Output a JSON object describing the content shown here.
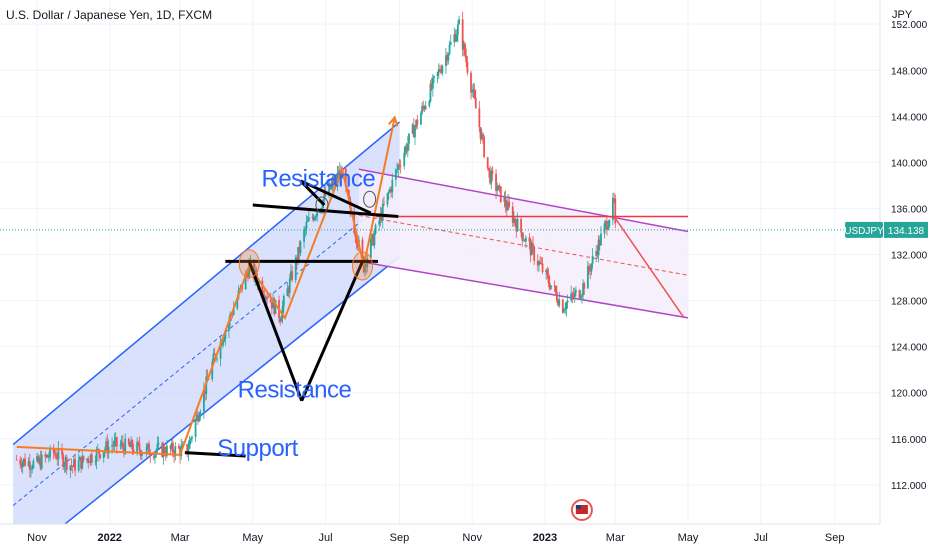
{
  "header": {
    "title": "U.S. Dollar / Japanese Yen, 1D, FXCM"
  },
  "axis": {
    "currency": "JPY"
  },
  "ticker": {
    "symbol": "USDJPY",
    "last": "134.138"
  },
  "colors": {
    "up": "#26a69a",
    "down": "#ef5350",
    "channel_fill": "#c9d4fb",
    "channel_line": "#2962ff",
    "purple": "#b045c9",
    "purple_fill": "#f4eefb",
    "orange": "#f57c26",
    "red_line": "#f23645",
    "text_blue": "#2962ff",
    "price_line": "#26a69a"
  },
  "chart_data": {
    "type": "candlestick",
    "title": "U.S. Dollar / Japanese Yen, 1D, FXCM",
    "y_unit": "JPY",
    "ylim": [
      108.6,
      154.1
    ],
    "y_ticks": [
      "112.000",
      "116.000",
      "120.000",
      "124.000",
      "128.000",
      "132.000",
      "136.000",
      "140.000",
      "144.000",
      "148.000",
      "152.000"
    ],
    "x_ticks": [
      "Nov",
      "2022",
      "Mar",
      "May",
      "Jul",
      "Sep",
      "Nov",
      "2023",
      "Mar",
      "May",
      "Jul",
      "Sep"
    ],
    "last_price": 134.138,
    "price_path": [
      [
        "2021-10-15",
        114.2
      ],
      [
        "2021-11-01",
        113.8
      ],
      [
        "2021-11-15",
        114.8
      ],
      [
        "2021-12-01",
        113.6
      ],
      [
        "2022-01-03",
        115.5
      ],
      [
        "2022-02-01",
        115.0
      ],
      [
        "2022-03-07",
        115.0
      ],
      [
        "2022-03-28",
        122.5
      ],
      [
        "2022-04-28",
        130.9
      ],
      [
        "2022-05-24",
        126.7
      ],
      [
        "2022-06-15",
        134.5
      ],
      [
        "2022-07-14",
        139.2
      ],
      [
        "2022-08-02",
        131.0
      ],
      [
        "2022-09-01",
        140.0
      ],
      [
        "2022-10-21",
        151.9
      ],
      [
        "2022-11-15",
        139.0
      ],
      [
        "2022-12-01",
        136.0
      ],
      [
        "2023-01-16",
        127.5
      ],
      [
        "2023-02-01",
        129.0
      ],
      [
        "2023-02-28",
        136.5
      ],
      [
        "2023-03-01",
        134.1
      ]
    ],
    "annotations": [
      {
        "text": "Resistance",
        "at": [
          "2022-06-25",
          137.9
        ],
        "color": "#2962ff"
      },
      {
        "text": "Resistance",
        "at": [
          "2022-06-05",
          119.6
        ],
        "color": "#2962ff"
      },
      {
        "text": "Support",
        "at": [
          "2022-05-05",
          114.5
        ],
        "color": "#2962ff"
      }
    ],
    "drawings": {
      "blue_channel": {
        "lower": [
          [
            "2021-10-12",
            105.0
          ],
          [
            "2022-09-01",
            131.8
          ]
        ],
        "upper": [
          [
            "2021-10-12",
            115.5
          ],
          [
            "2022-09-01",
            143.5
          ]
        ],
        "mid": [
          [
            "2021-10-12",
            110.2
          ],
          [
            "2022-09-01",
            137.6
          ]
        ]
      },
      "purple_channel": {
        "upper": [
          [
            "2022-07-29",
            139.4
          ],
          [
            "2023-05-01",
            134.0
          ]
        ],
        "lower": [
          [
            "2022-07-29",
            131.4
          ],
          [
            "2023-05-01",
            126.5
          ]
        ],
        "mid": [
          [
            "2022-07-29",
            135.4
          ],
          [
            "2023-05-01",
            130.2
          ]
        ]
      },
      "red_horizontal": {
        "y": 135.3,
        "from": "2022-08-12",
        "to": "2023-05-01"
      },
      "red_projection": [
        [
          "2023-02-28",
          135.3
        ],
        [
          "2023-04-27",
          126.6
        ]
      ],
      "orange_path": [
        [
          "2021-10-15",
          115.3
        ],
        [
          "2022-03-01",
          114.6
        ],
        [
          "2022-04-28",
          131.0
        ],
        [
          "2022-05-28",
          126.5
        ],
        [
          "2022-07-15",
          139.4
        ],
        [
          "2022-08-02",
          131.0
        ],
        [
          "2022-08-28",
          143.9
        ]
      ],
      "black_lines": [
        [
          [
            "2022-05-01",
            136.3
          ],
          [
            "2022-08-31",
            135.3
          ]
        ],
        [
          [
            "2022-04-08",
            131.4
          ],
          [
            "2022-08-14",
            131.4
          ]
        ],
        [
          [
            "2022-06-10",
            138.4
          ],
          [
            "2022-08-08",
            135.6
          ]
        ],
        [
          [
            "2022-06-10",
            138.4
          ],
          [
            "2022-06-30",
            136.3
          ]
        ],
        [
          [
            "2022-04-28",
            131.4
          ],
          [
            "2022-06-11",
            119.3
          ]
        ],
        [
          [
            "2022-06-11",
            119.3
          ],
          [
            "2022-08-01",
            131.4
          ]
        ],
        [
          [
            "2022-03-05",
            114.8
          ],
          [
            "2022-04-25",
            114.5
          ]
        ]
      ],
      "circles": [
        {
          "at": [
            "2022-04-28",
            131.2
          ],
          "kind": "orange"
        },
        {
          "at": [
            "2022-08-01",
            131.0
          ],
          "kind": "orange"
        },
        {
          "at": [
            "2022-06-28",
            136.3
          ],
          "kind": "grey"
        },
        {
          "at": [
            "2022-08-07",
            136.8
          ],
          "kind": "grey"
        }
      ]
    }
  }
}
